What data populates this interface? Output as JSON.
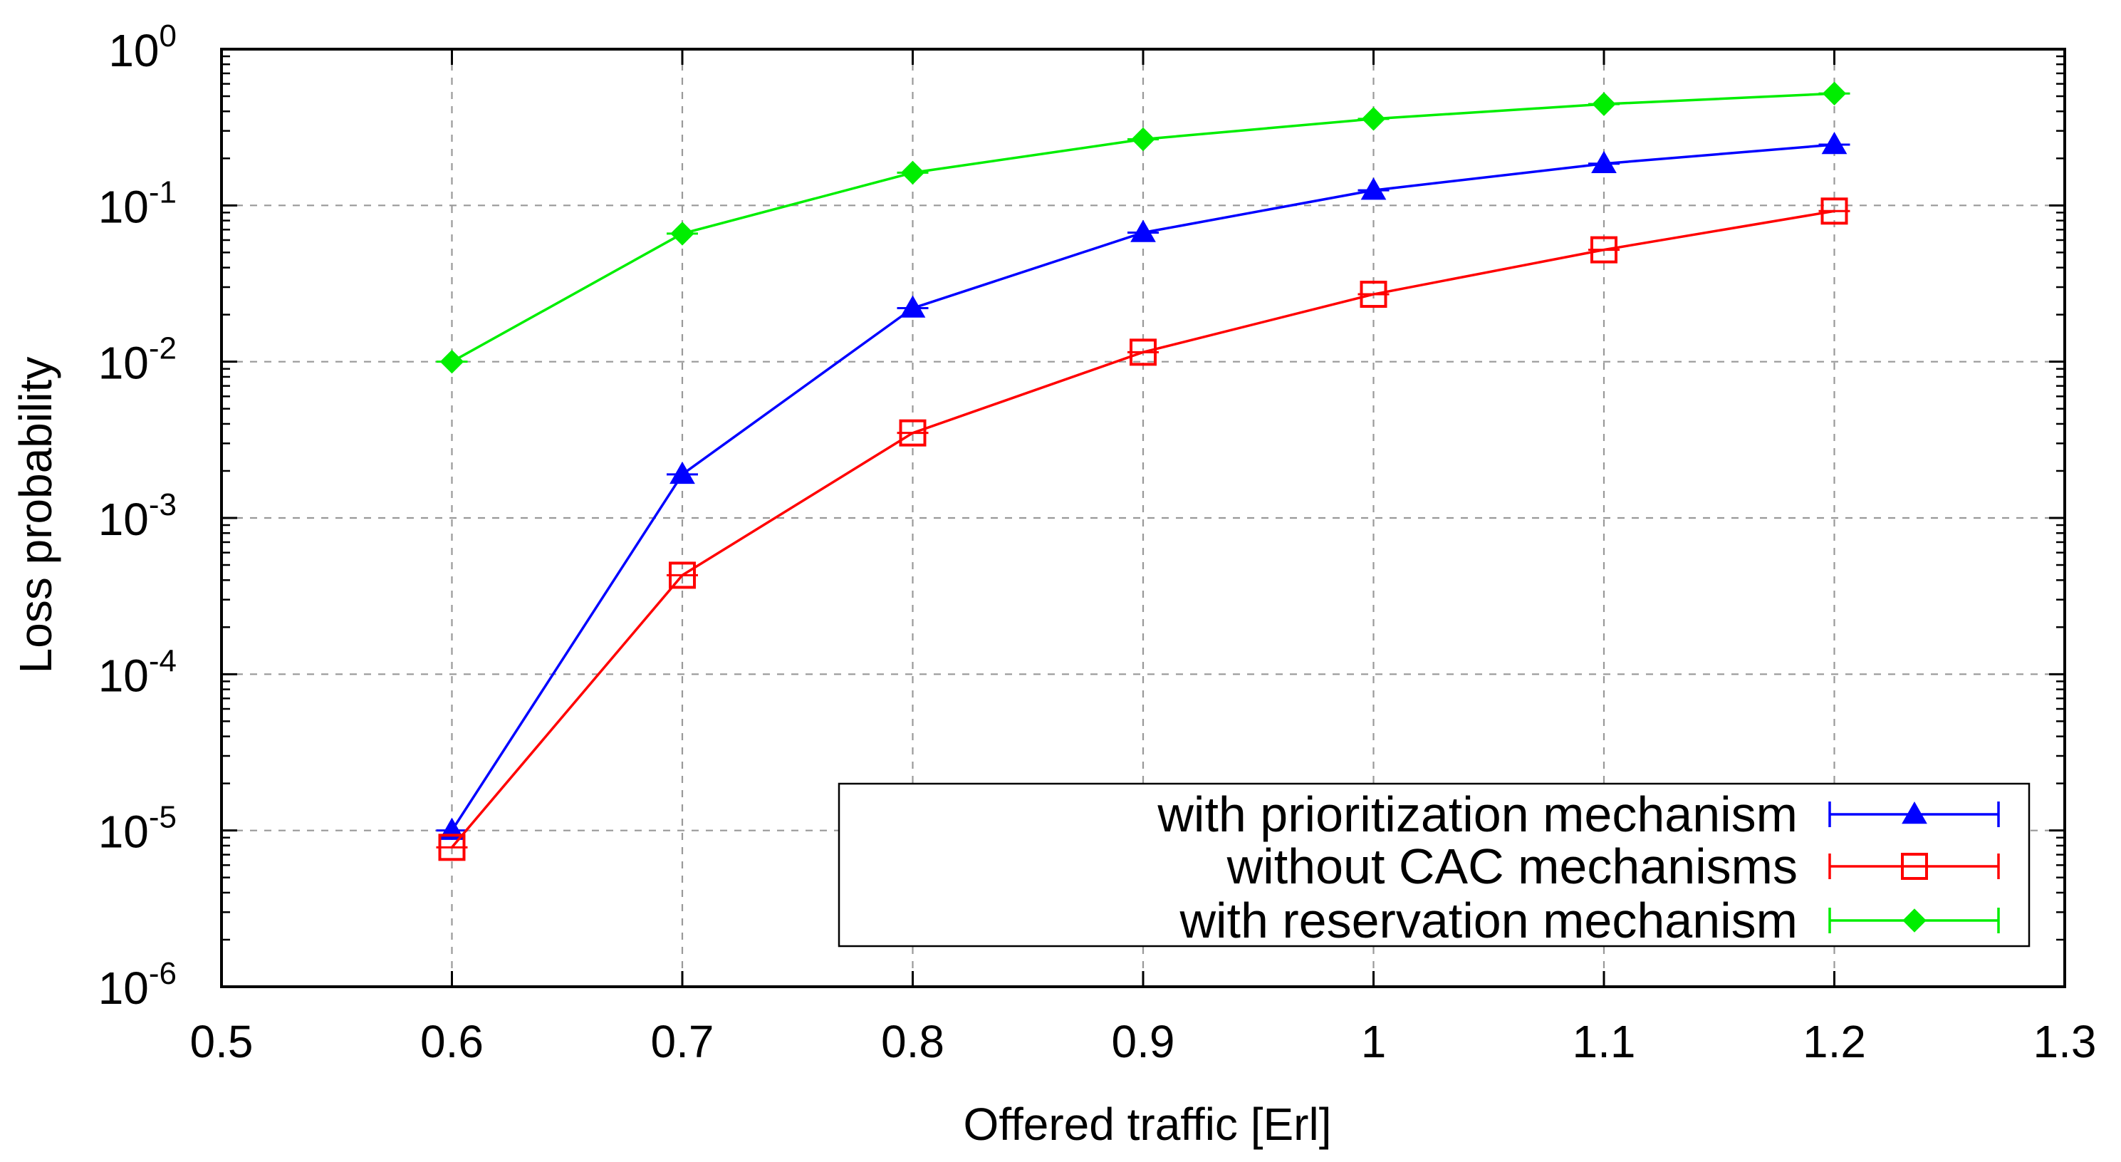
{
  "chart_data": {
    "type": "line",
    "title": "",
    "xlabel": "Offered traffic [Erl]",
    "ylabel": "Loss probability",
    "xlim": [
      0.5,
      1.3
    ],
    "ylim": [
      1e-06,
      1
    ],
    "yscale": "log",
    "x_ticks": [
      "0.5",
      "0.6",
      "0.7",
      "0.8",
      "0.9",
      "1",
      "1.1",
      "1.2",
      "1.3"
    ],
    "y_ticks": [
      {
        "base": "10",
        "exp": "-6"
      },
      {
        "base": "10",
        "exp": "-5"
      },
      {
        "base": "10",
        "exp": "-4"
      },
      {
        "base": "10",
        "exp": "-3"
      },
      {
        "base": "10",
        "exp": "-2"
      },
      {
        "base": "10",
        "exp": "-1"
      },
      {
        "base": "10",
        "exp": "0"
      }
    ],
    "grid": true,
    "legend_position": "bottom-right",
    "x": [
      0.6,
      0.7,
      0.8,
      0.9,
      1.0,
      1.1,
      1.2
    ],
    "series": [
      {
        "name": "with prioritization mechanism",
        "color": "#0000ff",
        "marker": "triangle",
        "values": [
          1e-05,
          0.0019,
          0.022,
          0.067,
          0.125,
          0.185,
          0.245
        ]
      },
      {
        "name": "without CAC mechanisms",
        "color": "#ff0000",
        "marker": "square-open",
        "values": [
          7.8e-06,
          0.00043,
          0.0035,
          0.0115,
          0.027,
          0.052,
          0.092
        ]
      },
      {
        "name": "with reservation mechanism",
        "color": "#00ee00",
        "marker": "diamond",
        "values": [
          0.01,
          0.066,
          0.162,
          0.265,
          0.358,
          0.445,
          0.52
        ]
      }
    ]
  }
}
